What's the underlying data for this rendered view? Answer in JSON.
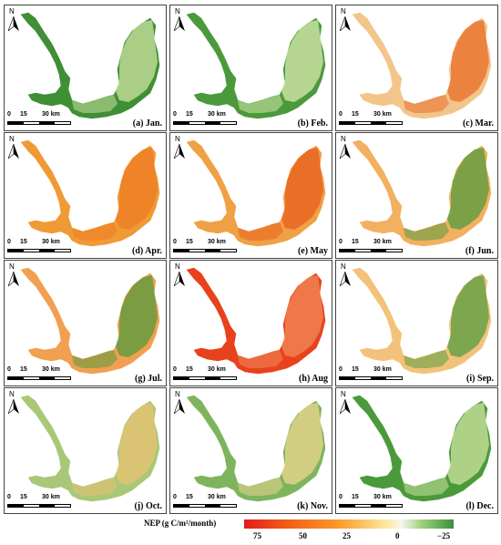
{
  "panels": [
    {
      "label": "(a) Jan.",
      "fill": "#3f8f35",
      "accent": "#d8e8a8"
    },
    {
      "label": "(b) Feb.",
      "fill": "#4a9a3c",
      "accent": "#e2eeb5"
    },
    {
      "label": "(c) Mar.",
      "fill": "#f2c58a",
      "accent": "#e8661f"
    },
    {
      "label": "(d) Apr.",
      "fill": "#f09a35",
      "accent": "#ec7a22"
    },
    {
      "label": "(e) May",
      "fill": "#f0a045",
      "accent": "#e75a1a"
    },
    {
      "label": "(f) Jun.",
      "fill": "#f2b060",
      "accent": "#4a9a3c"
    },
    {
      "label": "(g) Jul.",
      "fill": "#f0a050",
      "accent": "#4a9a3c"
    },
    {
      "label": "(h) Aug",
      "fill": "#e8421c",
      "accent": "#f29060"
    },
    {
      "label": "(i) Sep.",
      "fill": "#f3c27a",
      "accent": "#4a9a3c"
    },
    {
      "label": "(j) Oct.",
      "fill": "#a8c878",
      "accent": "#f0c070"
    },
    {
      "label": "(k) Nov.",
      "fill": "#7fb45e",
      "accent": "#f5d890"
    },
    {
      "label": "(l) Dec.",
      "fill": "#4a9a3c",
      "accent": "#d8e8a8"
    }
  ],
  "north_label": "N",
  "scale": {
    "t0": "0",
    "t1": "15",
    "t2": "30 km"
  },
  "legend": {
    "title": "NEP (g C/m²/month)",
    "ticks": [
      "75",
      "50",
      "25",
      "0",
      "−25"
    ],
    "colors": [
      "#e31a1c",
      "#f25c16",
      "#fb9a29",
      "#fee8a0",
      "#f7f7f0",
      "#9ccf7a",
      "#3b8f3a"
    ]
  }
}
